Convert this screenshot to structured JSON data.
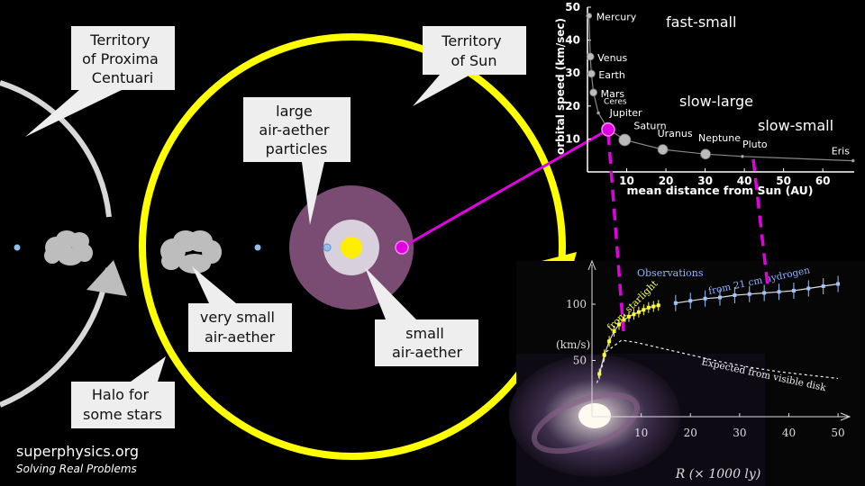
{
  "colors": {
    "sun_boundary": "#ffff00",
    "sun": "#ffee00",
    "large_aether": "#7a4c74",
    "small_aether": "#d8d0dc",
    "magenta": "#e000e0",
    "halo": "#d8d8d8",
    "callout_bg": "#eeeeee",
    "star": "#8fbfef",
    "cloud": "#bdbdbd"
  },
  "callouts": {
    "proxima": [
      "Territory",
      "of Proxima",
      "Centuari"
    ],
    "sun_territory": [
      "Territory",
      "of Sun"
    ],
    "large_aether": [
      "large",
      "air-aether",
      "particles"
    ],
    "very_small": [
      "very small",
      "air-aether"
    ],
    "small": [
      "small",
      "air-aether"
    ],
    "halo": [
      "Halo for",
      "some stars"
    ]
  },
  "region_labels": {
    "fast_small": "fast-small",
    "slow_large": "slow-large",
    "slow_small": "slow-small"
  },
  "footer": {
    "site": "superphysics.org",
    "tagline": "Solving Real Problems"
  },
  "chart_data": [
    {
      "type": "scatter",
      "xlabel": "mean distance from Sun (AU)",
      "ylabel": "orbital speed (km/sec)",
      "xlim": [
        0,
        68
      ],
      "ylim": [
        0,
        50
      ],
      "x_ticks": [
        10,
        20,
        30,
        40,
        50,
        60
      ],
      "y_ticks": [
        10,
        20,
        30,
        40,
        50
      ],
      "points": [
        {
          "name": "Mercury",
          "x": 0.39,
          "y": 47.4
        },
        {
          "name": "Venus",
          "x": 0.72,
          "y": 35.0
        },
        {
          "name": "Earth",
          "x": 1.0,
          "y": 29.8
        },
        {
          "name": "Mars",
          "x": 1.52,
          "y": 24.1
        },
        {
          "name": "Ceres",
          "x": 2.77,
          "y": 17.9
        },
        {
          "name": "Jupiter",
          "x": 5.2,
          "y": 13.1
        },
        {
          "name": "Saturn",
          "x": 9.5,
          "y": 9.7
        },
        {
          "name": "Uranus",
          "x": 19.2,
          "y": 6.8
        },
        {
          "name": "Neptune",
          "x": 30.1,
          "y": 5.4
        },
        {
          "name": "Pluto",
          "x": 39.5,
          "y": 4.7
        },
        {
          "name": "Eris",
          "x": 67.7,
          "y": 3.4
        }
      ]
    },
    {
      "type": "line",
      "xlabel": "R (× 1000 ly)",
      "ylabel": "(km/s)",
      "xlim": [
        0,
        52
      ],
      "ylim": [
        0,
        140
      ],
      "x_ticks": [
        10,
        20,
        30,
        40,
        50
      ],
      "y_ticks": [
        50,
        100
      ],
      "annotations": [
        "Observations",
        "from starlight",
        "from 21 cm hydrogen",
        "Expected from visible disk"
      ],
      "series": [
        {
          "name": "from starlight",
          "points": [
            [
              1.5,
              38
            ],
            [
              2.5,
              55
            ],
            [
              3.5,
              67
            ],
            [
              4.5,
              76
            ],
            [
              5.5,
              82
            ],
            [
              6.5,
              86
            ],
            [
              7.5,
              89
            ],
            [
              8.5,
              91
            ],
            [
              9.5,
              93
            ],
            [
              10.5,
              95
            ],
            [
              11.5,
              97
            ],
            [
              12.5,
              98
            ],
            [
              13.5,
              99
            ]
          ]
        },
        {
          "name": "from 21 cm hydrogen",
          "points": [
            [
              17,
              101
            ],
            [
              20,
              103
            ],
            [
              23,
              105
            ],
            [
              26,
              106
            ],
            [
              29,
              108
            ],
            [
              32,
              109
            ],
            [
              35,
              110
            ],
            [
              38,
              111
            ],
            [
              41,
              112
            ],
            [
              44,
              114
            ],
            [
              47,
              116
            ],
            [
              50,
              118
            ]
          ]
        },
        {
          "name": "Expected from visible disk",
          "points": [
            [
              1,
              30
            ],
            [
              3,
              58
            ],
            [
              6,
              68
            ],
            [
              9,
              66
            ],
            [
              14,
              61
            ],
            [
              20,
              55
            ],
            [
              26,
              49
            ],
            [
              32,
              44
            ],
            [
              38,
              40
            ],
            [
              44,
              37
            ],
            [
              50,
              34
            ]
          ]
        }
      ]
    }
  ]
}
